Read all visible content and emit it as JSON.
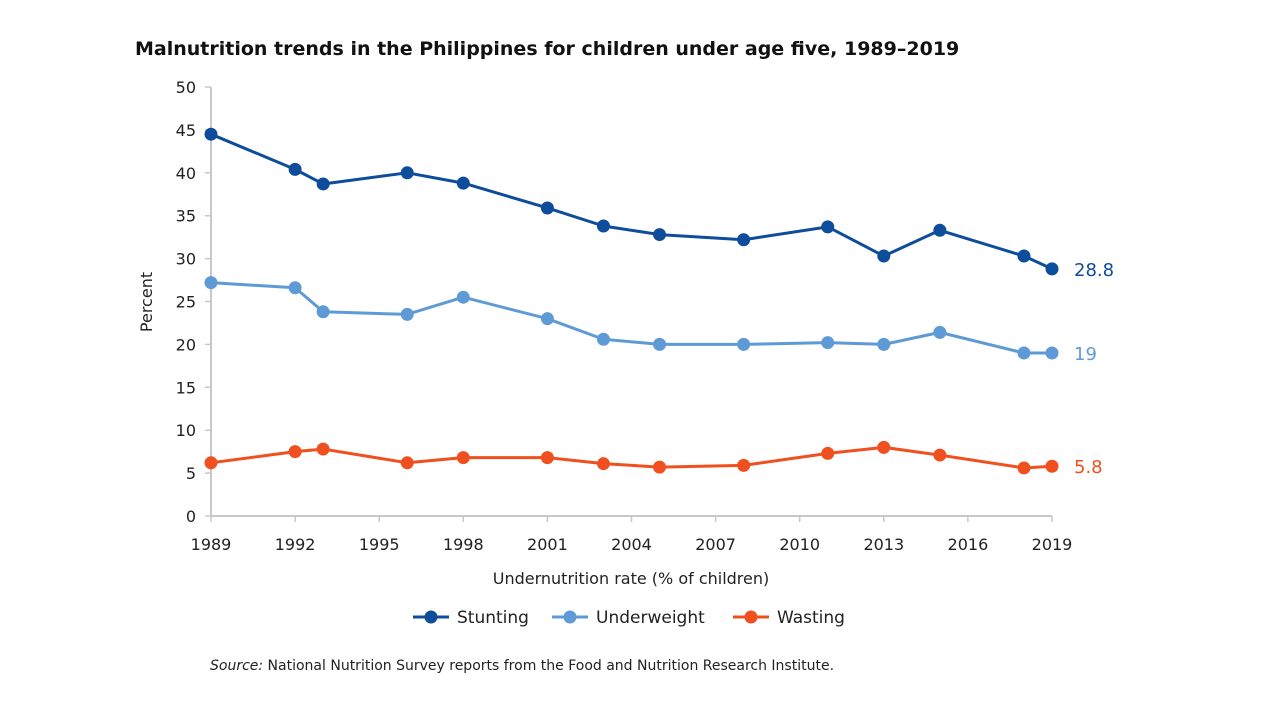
{
  "chart_data": {
    "type": "line",
    "title": "Malnutrition trends in the Philippines for children under age five, 1989–2019",
    "xlabel": "Undernutrition rate (% of children)",
    "ylabel": "Percent",
    "xlim": [
      1989,
      2019
    ],
    "ylim": [
      0,
      50
    ],
    "xticks": [
      1989,
      1992,
      1995,
      1998,
      2001,
      2004,
      2007,
      2010,
      2013,
      2016,
      2019
    ],
    "yticks": [
      0,
      5,
      10,
      15,
      20,
      25,
      30,
      35,
      40,
      45,
      50
    ],
    "grid": false,
    "legend_placement": "bottom",
    "x": [
      1989,
      1992,
      1993,
      1996,
      1998,
      2001,
      2003,
      2005,
      2008,
      2011,
      2013,
      2015,
      2018,
      2019
    ],
    "series": [
      {
        "name": "Stunting",
        "color": "#0e4c9c",
        "end_label": "28.8",
        "values": [
          44.5,
          40.4,
          38.7,
          40.0,
          38.8,
          35.9,
          33.8,
          32.8,
          32.2,
          33.7,
          30.3,
          33.3,
          30.3,
          28.8
        ]
      },
      {
        "name": "Underweight",
        "color": "#5e9bd6",
        "end_label": "19",
        "values": [
          27.2,
          26.6,
          23.8,
          23.5,
          25.5,
          23.0,
          20.6,
          20.0,
          20.0,
          20.2,
          20.0,
          21.4,
          19.0,
          19.0
        ]
      },
      {
        "name": "Wasting",
        "color": "#f0501f",
        "end_label": "5.8",
        "values": [
          6.2,
          7.5,
          7.8,
          6.2,
          6.8,
          6.8,
          6.1,
          5.7,
          5.9,
          7.3,
          8.0,
          7.1,
          5.6,
          5.8
        ]
      }
    ]
  },
  "source": {
    "prefix": "Source:",
    "text": " National Nutrition Survey reports from the Food and Nutrition Research Institute."
  }
}
